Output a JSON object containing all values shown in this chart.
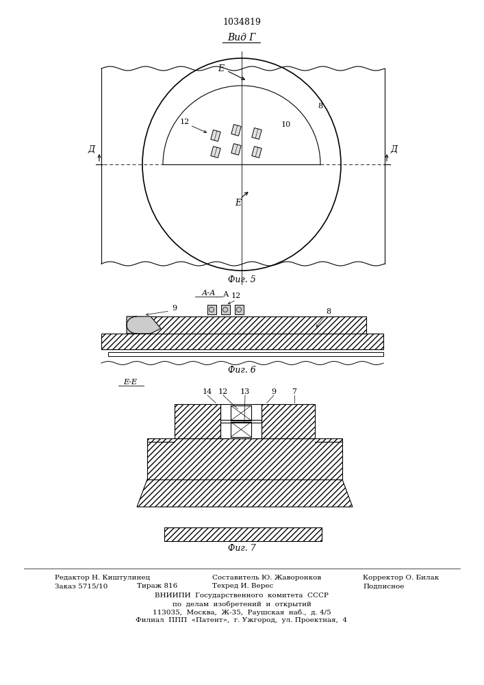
{
  "patent_number": "1034819",
  "title_view": "Вид Г",
  "fig5_label": "Фиг. 5",
  "fig6_label": "Фиг. 6",
  "fig7_label": "Фиг. 7",
  "section_AA": "А-А",
  "section_EE": "Е-Е",
  "bg_color": "#ffffff"
}
